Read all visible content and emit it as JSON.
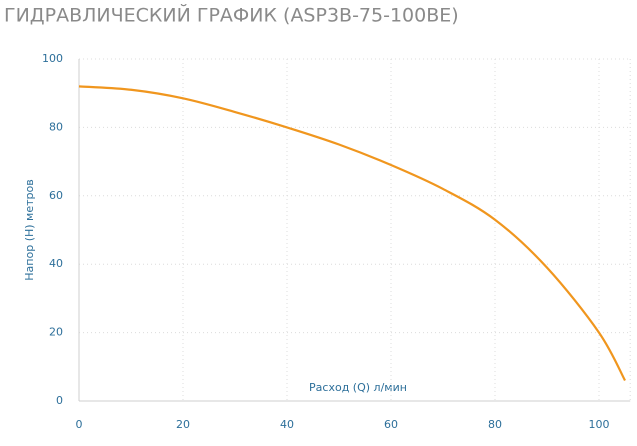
{
  "chart_data": {
    "type": "line",
    "title": "ГИДРАВЛИЧЕСКИЙ ГРАФИК (ASP3B-75-100BE)",
    "x_label": "Расход (Q) л/мин",
    "y_label": "Напор (H) метров",
    "series": [
      {
        "name": "ASP3B-75-100BE",
        "color": "#f0961e",
        "x": [
          0,
          10,
          20,
          30,
          40,
          50,
          60,
          70,
          80,
          90,
          100,
          105
        ],
        "values": [
          92,
          91,
          88.5,
          84.5,
          80,
          75,
          69,
          62,
          53,
          39,
          20,
          6
        ]
      }
    ],
    "xlim": [
      0,
      106
    ],
    "xticks": [
      0,
      20,
      40,
      60,
      80,
      100
    ],
    "ylim": [
      0,
      100
    ],
    "yticks": [
      0,
      20,
      40,
      60,
      80,
      100
    ],
    "grid": true
  }
}
